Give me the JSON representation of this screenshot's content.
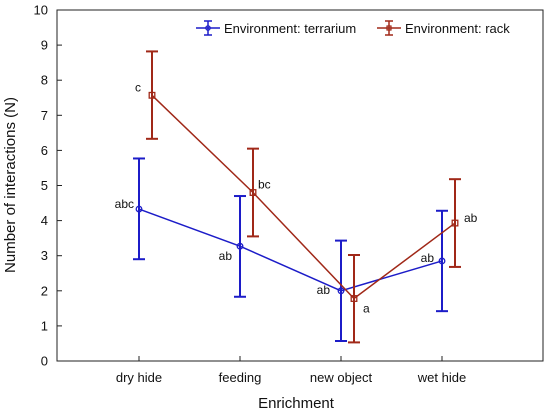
{
  "chart_data": {
    "type": "line",
    "title": "",
    "xlabel": "Enrichment",
    "ylabel": "Number of interactions (N)",
    "categories": [
      "dry hide",
      "feeding",
      "new object",
      "wet hide"
    ],
    "ylim": [
      0,
      10
    ],
    "yticks": [
      "0",
      "1",
      "2",
      "3",
      "4",
      "5",
      "6",
      "7",
      "8",
      "9",
      "10"
    ],
    "grid": false,
    "legend_position": "top-right",
    "series": [
      {
        "name": "Environment: terrarium",
        "color": "#1c1cc8",
        "marker": "circle",
        "values": [
          4.33,
          3.27,
          2.0,
          2.85
        ],
        "err_low": [
          2.9,
          1.83,
          0.57,
          1.42
        ],
        "err_high": [
          5.77,
          4.7,
          3.43,
          4.28
        ],
        "labels": [
          "abc",
          "ab",
          "ab",
          "ab"
        ]
      },
      {
        "name": "Environment: rack",
        "color": "#a02818",
        "marker": "square",
        "values": [
          7.57,
          4.8,
          1.78,
          3.93
        ],
        "err_low": [
          6.33,
          3.55,
          0.53,
          2.68
        ],
        "err_high": [
          8.82,
          6.05,
          3.02,
          5.18
        ],
        "labels": [
          "c",
          "bc",
          "a",
          "ab"
        ]
      }
    ]
  }
}
